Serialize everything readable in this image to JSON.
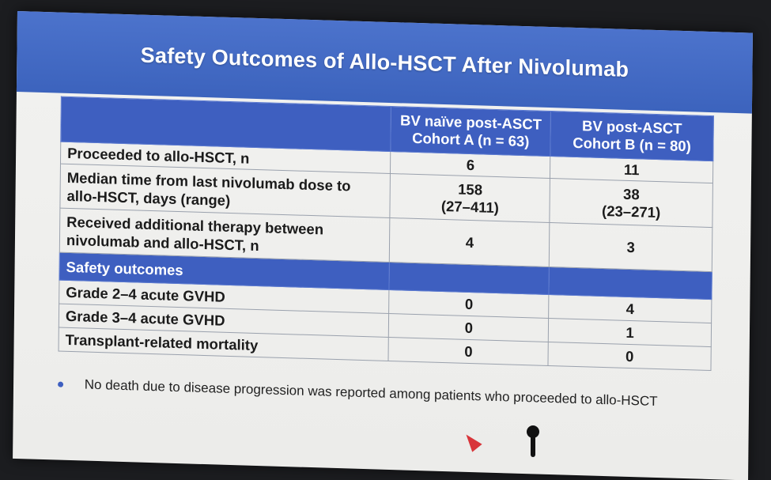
{
  "slide": {
    "title": "Safety Outcomes of Allo-HSCT After Nivolumab",
    "table": {
      "columns": [
        {
          "line1": "BV naïve post-ASCT",
          "line2": "Cohort A (n = 63)"
        },
        {
          "line1": "BV post-ASCT",
          "line2": "Cohort B (n = 80)"
        }
      ],
      "rows": {
        "proceeded": {
          "label": "Proceeded to allo-HSCT, n",
          "a": "6",
          "b": "11"
        },
        "median_time": {
          "label_line1": "Median time from last nivolumab dose to",
          "label_line2": "allo-HSCT, days (range)",
          "a_value": "158",
          "a_range": "(27–411)",
          "b_value": "38",
          "b_range": "(23–271)"
        },
        "additional_therapy": {
          "label_line1": "Received additional therapy between",
          "label_line2": "nivolumab and allo-HSCT, n",
          "a": "4",
          "b": "3"
        },
        "section_label": "Safety outcomes",
        "grade_2_4": {
          "label": "Grade 2–4 acute GVHD",
          "a": "0",
          "b": "4"
        },
        "grade_3_4": {
          "label": "Grade 3–4 acute GVHD",
          "a": "0",
          "b": "1"
        },
        "trm": {
          "label": "Transplant-related mortality",
          "a": "0",
          "b": "0"
        }
      }
    },
    "bullet": "No death due to disease progression was reported among patients who proceeded to allo-HSCT"
  },
  "colors": {
    "accent": "#3e5fc0",
    "pointer": "#d8353a",
    "background": "#1c1d20"
  }
}
